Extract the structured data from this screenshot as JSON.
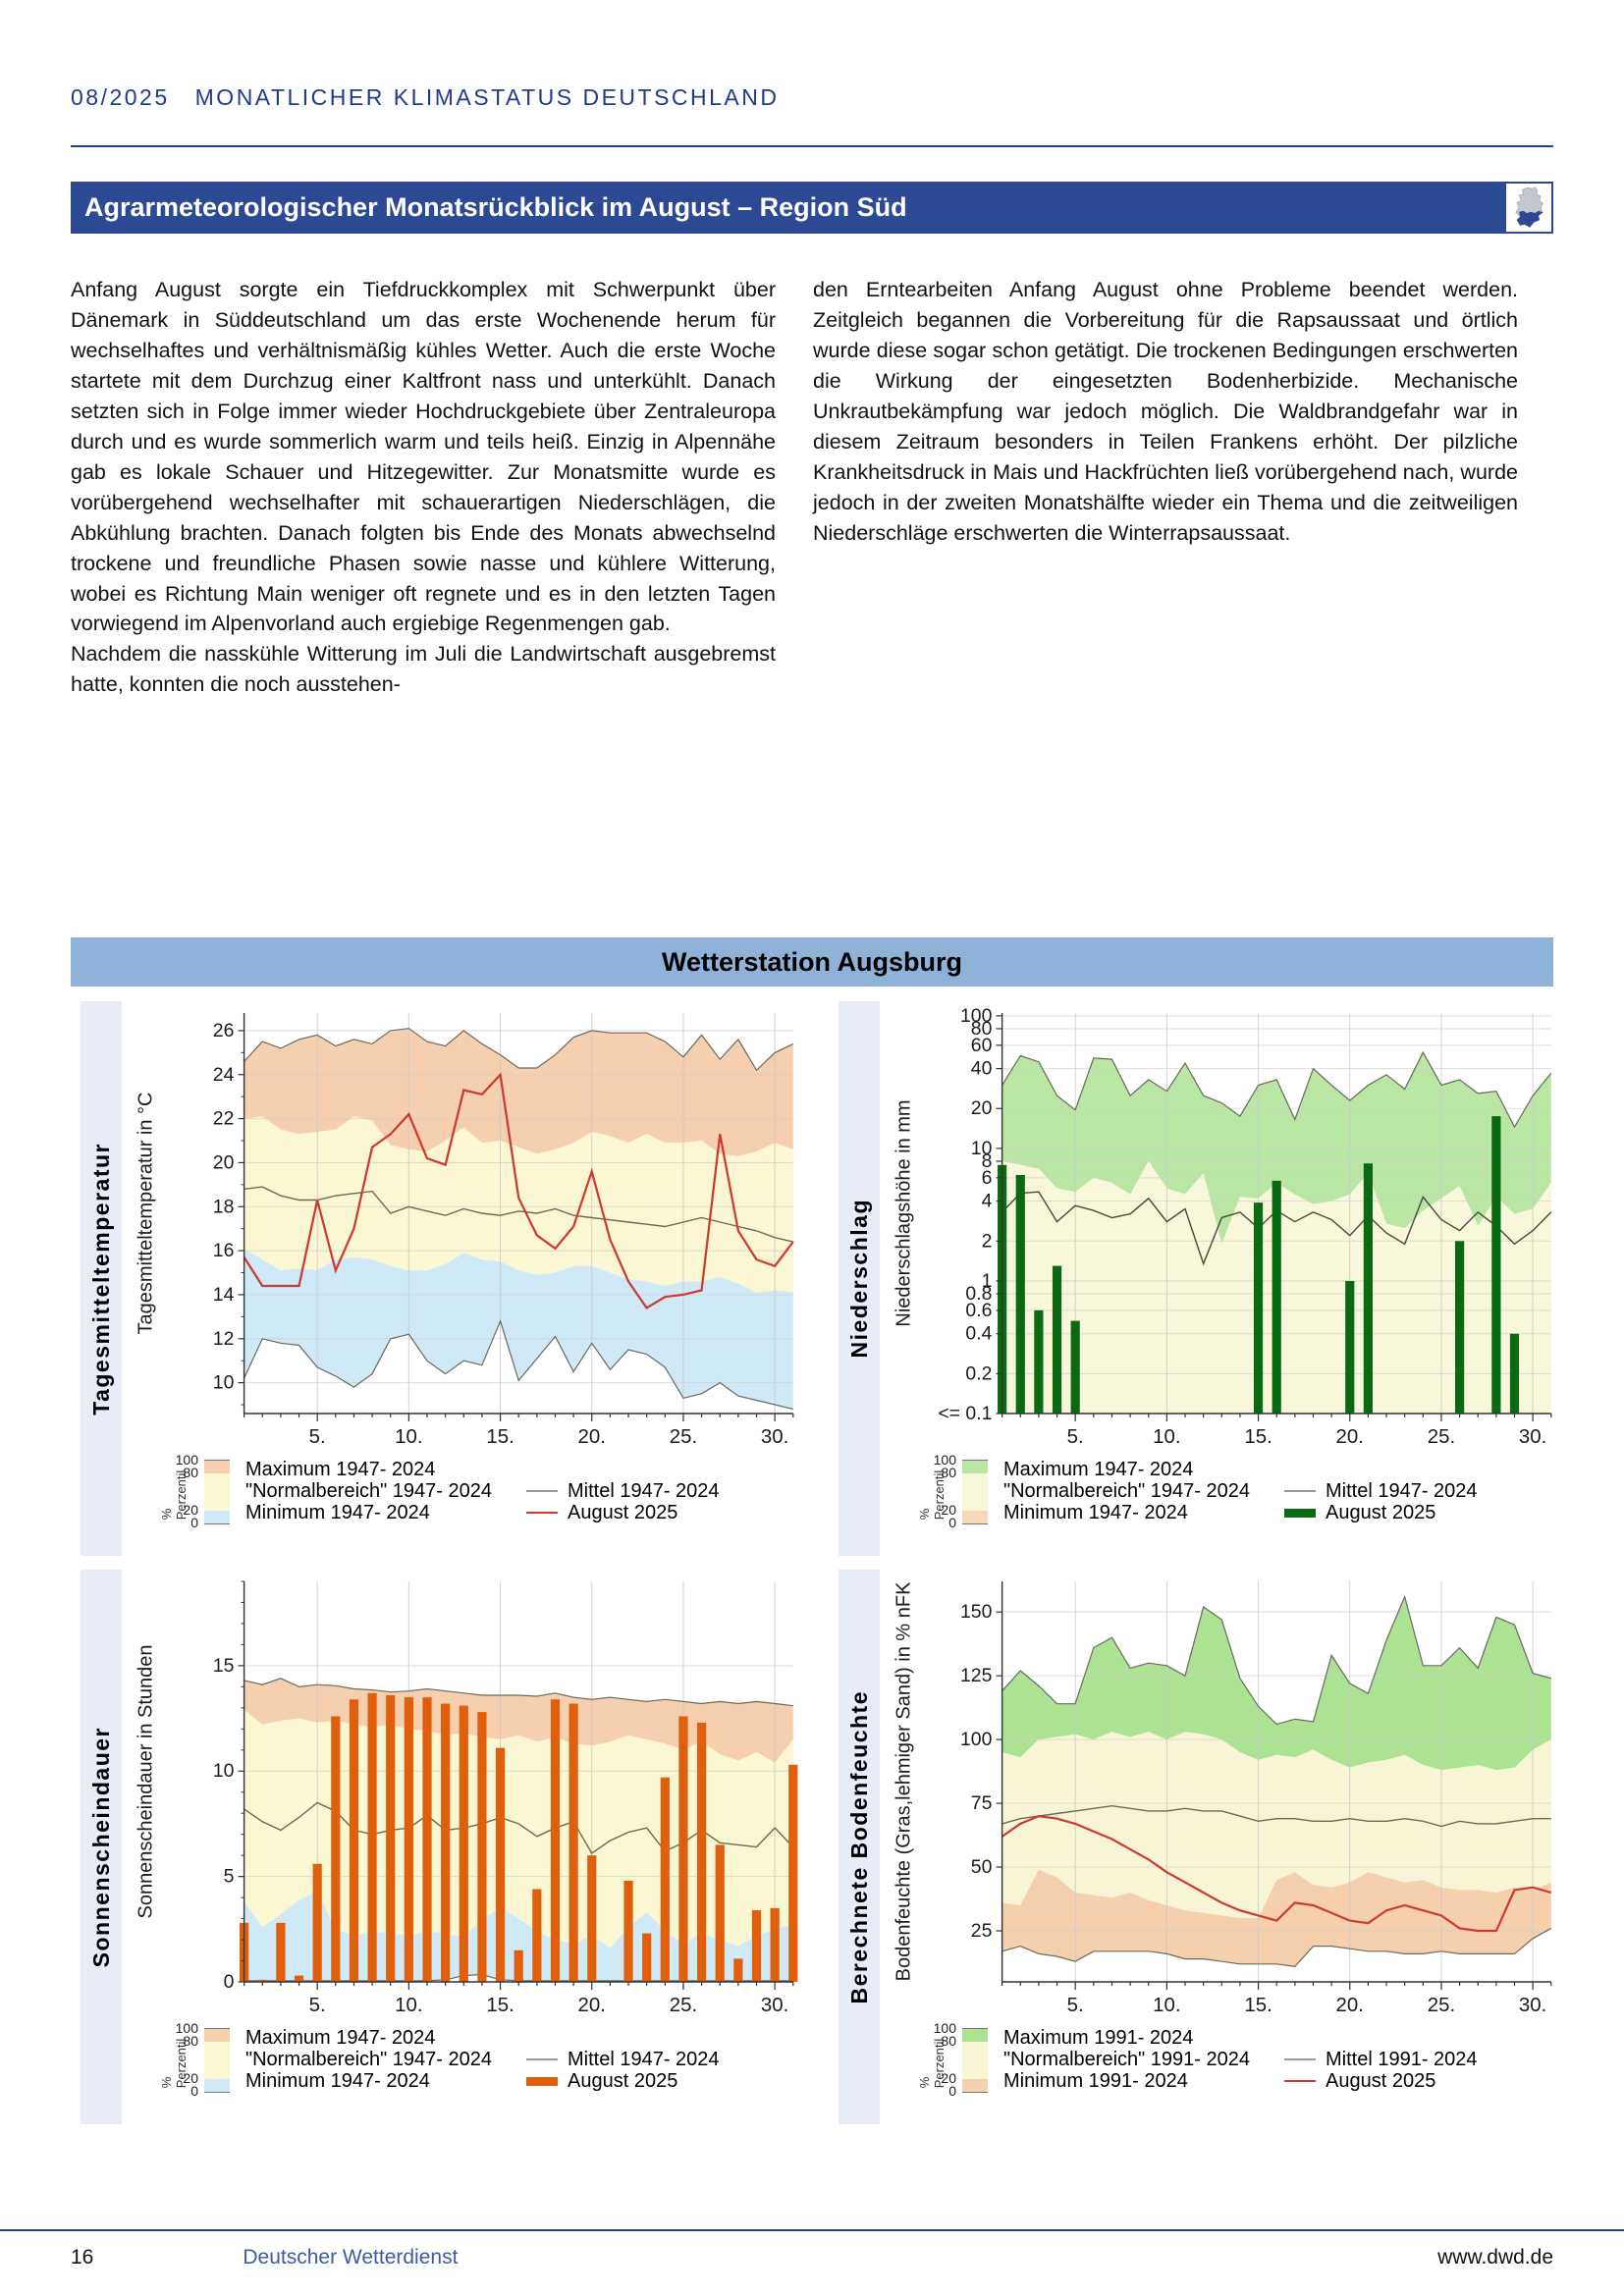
{
  "page": {
    "header": {
      "issue": "08/2025",
      "title": "MONATLICHER KLIMASTATUS DEUTSCHLAND"
    },
    "banner": {
      "title": "Agrarmeteorologischer Monatsrückblick im August – Region Süd"
    },
    "body": {
      "left_col": [
        "Anfang August sorgte ein Tiefdruckkomplex mit Schwerpunkt über Dänemark in Süddeutschland um das erste Wochenende herum für wechselhaftes und verhältnismäßig kühles Wetter. Auch die erste Woche startete mit dem Durchzug einer Kaltfront nass und unterkühlt. Danach setzten sich in Folge immer wieder Hochdruckgebiete über Zentraleuropa durch und es wurde sommerlich warm und teils heiß. Einzig in Alpennähe gab es lokale Schauer und Hitzegewitter. Zur Monatsmitte wurde es vorübergehend wechselhafter mit schauerartigen Niederschlägen, die Abkühlung brachten. Danach folgten bis Ende des Monats abwechselnd trockene und freundliche Phasen sowie nasse und kühlere Witterung, wobei es Richtung Main weniger oft regnete und es in den letzten Tagen vorwiegend im Alpenvorland auch ergiebige Regenmengen gab.",
        "Nachdem die nasskühle Witterung im Juli die Landwirtschaft ausgebremst hatte, konnten die noch ausstehen-"
      ],
      "right_col": [
        "den Erntearbeiten Anfang August ohne Probleme beendet werden. Zeitgleich begannen die Vorbereitung für die Rapsaussaat und örtlich wurde diese sogar schon getätigt. Die trockenen Bedingungen erschwerten die Wirkung der eingesetzten Bodenherbizide. Mechanische Unkrautbekämpfung war jedoch möglich. Die Waldbrandgefahr war in diesem Zeitraum besonders in Teilen Frankens erhöht. Der pilzliche Krankheitsdruck in Mais und Hackfrüchten ließ vorübergehend nach, wurde jedoch in der zweiten Monatshälfte wieder ein Thema und die zeitweiligen Niederschläge erschwerten die Winterrapsaussaat."
      ]
    },
    "station_banner": "Wetterstation Augsburg",
    "footer": {
      "page_number": "16",
      "publisher": "Deutscher Wetterdienst",
      "website": "www.dwd.de"
    }
  },
  "colors": {
    "banner_blue": "#2c4a94",
    "station_blue": "#8fb2d9",
    "header_navy": "#1e3c8c",
    "sidebar_bg": "#e8ecf6"
  },
  "chart_data": [
    {
      "id": "tagesmitteltemperatur",
      "type": "area",
      "panel_label": "Tagesmitteltemperatur",
      "ylabel": "Tagesmitteltemperatur in °C",
      "yscale": "linear",
      "ylim": [
        8.6,
        26.8
      ],
      "yticks": [
        10,
        12,
        14,
        16,
        18,
        20,
        22,
        24,
        26
      ],
      "yminor": 1,
      "xticks": [
        5,
        10,
        15,
        20,
        25,
        30
      ],
      "series": {
        "max": [
          24.6,
          25.5,
          25.2,
          25.6,
          25.8,
          25.3,
          25.6,
          25.4,
          26.0,
          26.1,
          25.5,
          25.3,
          26.0,
          25.4,
          24.9,
          24.3,
          24.3,
          24.9,
          25.7,
          26.0,
          25.9,
          25.9,
          25.9,
          25.5,
          24.8,
          25.8,
          24.7,
          25.6,
          24.2,
          25.0,
          25.4
        ],
        "p80": [
          22.0,
          22.1,
          21.5,
          21.3,
          21.4,
          21.5,
          22.1,
          21.9,
          20.8,
          20.6,
          20.5,
          21.0,
          21.6,
          20.9,
          21.0,
          20.7,
          20.4,
          20.6,
          20.9,
          21.4,
          21.2,
          20.9,
          21.3,
          20.9,
          20.9,
          21.0,
          20.4,
          20.3,
          20.5,
          20.9,
          20.6
        ],
        "p20": [
          16.1,
          15.6,
          15.1,
          15.2,
          15.1,
          15.6,
          15.7,
          15.6,
          15.3,
          15.1,
          15.1,
          15.4,
          15.9,
          15.6,
          15.5,
          15.1,
          14.9,
          15.0,
          15.3,
          15.3,
          15.0,
          14.7,
          14.6,
          14.4,
          14.6,
          14.6,
          14.8,
          14.5,
          14.1,
          14.2,
          14.1
        ],
        "min": [
          10.2,
          12.0,
          11.8,
          11.7,
          10.7,
          10.3,
          9.8,
          10.4,
          12.0,
          12.2,
          11.0,
          10.4,
          11.0,
          10.8,
          12.8,
          10.1,
          11.1,
          12.1,
          10.5,
          11.8,
          10.6,
          11.5,
          11.3,
          10.7,
          9.3,
          9.5,
          10.0,
          9.4,
          9.2,
          9.0,
          8.8
        ],
        "mittel": [
          18.8,
          18.9,
          18.5,
          18.3,
          18.3,
          18.5,
          18.6,
          18.7,
          17.7,
          18.0,
          17.8,
          17.6,
          17.9,
          17.7,
          17.6,
          17.8,
          17.7,
          17.9,
          17.6,
          17.5,
          17.4,
          17.3,
          17.2,
          17.1,
          17.3,
          17.5,
          17.3,
          17.1,
          16.9,
          16.6,
          16.4
        ],
        "august": [
          15.7,
          14.4,
          14.4,
          14.4,
          18.3,
          15.1,
          17.0,
          20.7,
          21.3,
          22.2,
          20.2,
          19.9,
          23.3,
          23.1,
          24.0,
          18.4,
          16.7,
          16.1,
          17.1,
          19.6,
          16.5,
          14.6,
          13.4,
          13.9,
          14.0,
          14.2,
          21.3,
          16.9,
          15.6,
          15.3,
          16.4
        ]
      },
      "band_colors": {
        "max": "#f6cfae",
        "normal": "#faf7d2",
        "min": "#cfe9f7"
      },
      "mittel_color": "#6b6b5a",
      "august_color": "#cc3a31",
      "legend": {
        "percentile_label": "% Perzentil",
        "percentile_ticks": [
          "100",
          "80",
          "20",
          "0"
        ],
        "items": [
          "Maximum 1947- 2024",
          "\"Normalbereich\" 1947- 2024",
          "Minimum 1947- 2024"
        ],
        "mittel_label": "Mittel 1947- 2024",
        "august_label": "August 2025",
        "august_swatch": "line"
      }
    },
    {
      "id": "niederschlag",
      "type": "bar",
      "panel_label": "Niederschlag",
      "ylabel": "Niederschlagshöhe in mm",
      "yscale": "log",
      "ylim": [
        0.1,
        105
      ],
      "yticks": [
        100,
        80,
        60,
        40,
        20,
        10,
        8,
        6,
        4,
        2,
        1,
        0.8,
        0.6,
        0.4,
        0.2,
        0.1
      ],
      "ytick_labels": [
        "100",
        "80",
        "60",
        "40",
        "20",
        "10",
        "8",
        "6",
        "4",
        "2",
        "1",
        "0.8",
        "0.6",
        "0.4",
        "0.2",
        "<= 0.1"
      ],
      "xticks": [
        5,
        10,
        15,
        20,
        25,
        30
      ],
      "series": {
        "max": [
          30,
          50,
          45,
          25,
          19.5,
          48,
          47,
          25,
          33,
          27,
          44,
          25,
          22,
          17.5,
          30,
          33,
          16.5,
          40,
          30,
          23,
          30,
          36,
          28,
          53,
          30,
          33,
          26,
          27,
          14.5,
          25,
          37
        ],
        "p80": [
          8,
          7.5,
          7,
          5,
          4.7,
          6,
          5.5,
          4.5,
          8,
          5,
          4.5,
          6.5,
          1.9,
          4.3,
          4.2,
          5.5,
          4.5,
          3.8,
          4,
          4.5,
          6.5,
          2.7,
          2.5,
          3.4,
          4.2,
          5.2,
          2.6,
          4.3,
          3.2,
          3.5,
          5.5
        ],
        "mittel": [
          3.3,
          4.6,
          4.7,
          2.8,
          3.7,
          3.4,
          3.0,
          3.2,
          4.2,
          2.8,
          3.5,
          1.35,
          3.0,
          3.3,
          2.5,
          3.4,
          2.8,
          3.3,
          2.9,
          2.2,
          3.1,
          2.3,
          1.9,
          4.3,
          2.9,
          2.4,
          3.3,
          2.6,
          1.9,
          2.4,
          3.3
        ],
        "bars": [
          7.5,
          6.3,
          0.6,
          1.3,
          0.5,
          null,
          null,
          null,
          null,
          null,
          null,
          null,
          null,
          null,
          3.9,
          5.7,
          null,
          null,
          null,
          1.0,
          7.7,
          null,
          null,
          null,
          null,
          2.0,
          null,
          17.5,
          0.4,
          null,
          null
        ]
      },
      "band_colors": {
        "max": "#b9e7a3",
        "normal": "#f8f7d9",
        "min": "#f7d8b8"
      },
      "mittel_color": "#4a4a42",
      "august_color": "#0a6a12",
      "legend": {
        "percentile_label": "% Perzentil",
        "percentile_ticks": [
          "100",
          "80",
          "20",
          "0"
        ],
        "items": [
          "Maximum 1947- 2024",
          "\"Normalbereich\" 1947- 2024",
          "Minimum 1947- 2024"
        ],
        "mittel_label": "Mittel 1947- 2024",
        "august_label": "August 2025",
        "august_swatch": "bar"
      }
    },
    {
      "id": "sonnenscheindauer",
      "type": "bar",
      "panel_label": "Sonnenscheindauer",
      "ylabel": "Sonnenscheindauer in Stunden",
      "yscale": "linear",
      "ylim": [
        0,
        19
      ],
      "yticks": [
        0,
        5,
        10,
        15
      ],
      "yminor": 1,
      "xticks": [
        5,
        10,
        15,
        20,
        25,
        30
      ],
      "series": {
        "max": [
          14.3,
          14.1,
          14.4,
          14.0,
          14.1,
          14.05,
          13.9,
          13.85,
          13.75,
          13.8,
          13.9,
          13.8,
          13.7,
          13.6,
          13.6,
          13.6,
          13.55,
          13.7,
          13.5,
          13.4,
          13.5,
          13.4,
          13.3,
          13.4,
          13.3,
          13.2,
          13.3,
          13.2,
          13.3,
          13.2,
          13.1
        ],
        "p80": [
          12.9,
          12.2,
          12.4,
          12.5,
          12.3,
          12.4,
          12.2,
          12.1,
          12.2,
          12.0,
          11.9,
          11.7,
          11.8,
          11.6,
          11.5,
          11.7,
          11.4,
          11.6,
          11.3,
          11.2,
          11.4,
          11.7,
          11.5,
          11.3,
          11.0,
          11.4,
          10.8,
          10.5,
          10.9,
          10.4,
          11.5
        ],
        "p20": [
          3.8,
          2.6,
          3.2,
          3.9,
          4.3,
          2.5,
          2.2,
          2.4,
          2.3,
          2.2,
          2.4,
          2.3,
          2.1,
          3.0,
          3.5,
          3.0,
          2.4,
          2.0,
          1.8,
          2.2,
          1.6,
          2.6,
          3.3,
          2.4,
          1.8,
          2.3,
          2.0,
          1.7,
          2.2,
          2.5,
          2.7
        ],
        "min": [
          0.05,
          0.05,
          0.05,
          0.05,
          0.05,
          0.05,
          0.05,
          0.05,
          0.05,
          0.05,
          0.05,
          0.1,
          0.3,
          0.35,
          0.1,
          0.05,
          0.05,
          0.05,
          0.05,
          0.05,
          0.05,
          0.05,
          0.05,
          0.05,
          0.05,
          0.05,
          0.05,
          0.05,
          0.05,
          0.05,
          0.05
        ],
        "mittel": [
          8.2,
          7.6,
          7.2,
          7.8,
          8.5,
          8.1,
          7.2,
          7.0,
          7.2,
          7.3,
          7.9,
          7.2,
          7.3,
          7.5,
          7.8,
          7.5,
          6.9,
          7.3,
          7.6,
          6.1,
          6.7,
          7.1,
          7.3,
          6.2,
          6.6,
          7.2,
          6.6,
          6.5,
          6.4,
          7.3,
          6.4
        ],
        "bars": [
          2.8,
          0.1,
          2.8,
          0.3,
          5.6,
          12.6,
          13.4,
          13.7,
          13.6,
          13.5,
          13.5,
          13.2,
          13.1,
          12.8,
          11.1,
          1.5,
          4.4,
          13.4,
          13.2,
          6.0,
          null,
          4.8,
          2.3,
          9.7,
          12.6,
          12.3,
          6.5,
          1.1,
          3.4,
          3.5,
          10.3
        ]
      },
      "band_colors": {
        "max": "#f6cfae",
        "normal": "#faf7d2",
        "min": "#cfe9f7"
      },
      "mittel_color": "#6b6b5a",
      "august_color": "#e05f0c",
      "legend": {
        "percentile_label": "% Perzentil",
        "percentile_ticks": [
          "100",
          "80",
          "20",
          "0"
        ],
        "items": [
          "Maximum 1947- 2024",
          "\"Normalbereich\" 1947- 2024",
          "Minimum 1947- 2024"
        ],
        "mittel_label": "Mittel 1947- 2024",
        "august_label": "August 2025",
        "august_swatch": "bar"
      }
    },
    {
      "id": "bodenfeuchte",
      "type": "area",
      "panel_label": "Berechnete Bodenfeuchte",
      "ylabel": "Bodenfeuchte (Gras,lehmiger Sand) in % nFK",
      "yscale": "linear",
      "ylim": [
        5,
        162
      ],
      "yticks": [
        25,
        50,
        75,
        100,
        125,
        150
      ],
      "yminor": 0,
      "xticks": [
        5,
        10,
        15,
        20,
        25,
        30
      ],
      "series": {
        "max": [
          119,
          127,
          121,
          114,
          114,
          136,
          140,
          128,
          130,
          129,
          125,
          152,
          147,
          124,
          113,
          106,
          108,
          107,
          133,
          122,
          118,
          139,
          156,
          129,
          129,
          136,
          128,
          148,
          145,
          126,
          124
        ],
        "p80": [
          95,
          93,
          100,
          101,
          102,
          100,
          103,
          101,
          103,
          100,
          103,
          102,
          100,
          95,
          92,
          94,
          93,
          96,
          92,
          89,
          91,
          92,
          94,
          90,
          88,
          89,
          90,
          88,
          89,
          96,
          100
        ],
        "p20": [
          36,
          35,
          49,
          46,
          40,
          39,
          38,
          40,
          37,
          35,
          33,
          32,
          31,
          30,
          30,
          45,
          48,
          43,
          42,
          44,
          48,
          46,
          44,
          45,
          42,
          41,
          41,
          40,
          42,
          41,
          44
        ],
        "min": [
          17,
          19,
          16,
          15,
          13,
          17,
          17,
          17,
          17,
          16,
          14,
          14,
          13,
          12,
          12,
          12,
          11,
          19,
          19,
          18,
          17,
          17,
          16,
          16,
          17,
          16,
          16,
          16,
          16,
          22,
          26
        ],
        "mittel": [
          67,
          69,
          70,
          71,
          72,
          73,
          74,
          73,
          72,
          72,
          73,
          72,
          72,
          70,
          68,
          69,
          69,
          68,
          68,
          69,
          68,
          68,
          69,
          68,
          66,
          68,
          67,
          67,
          68,
          69,
          69
        ],
        "august": [
          62,
          67,
          70,
          69,
          67,
          64,
          61,
          57,
          53,
          48,
          44,
          40,
          36,
          33,
          31,
          29,
          36,
          35,
          32,
          29,
          28,
          33,
          35,
          33,
          31,
          26,
          25,
          25,
          41,
          42,
          40
        ]
      },
      "band_colors": {
        "max": "#abe392",
        "normal": "#f8f5d6",
        "min": "#f6cfad"
      },
      "mittel_color": "#6b6b5a",
      "august_color": "#cc3a31",
      "legend": {
        "percentile_label": "% Perzentil",
        "percentile_ticks": [
          "100",
          "80",
          "20",
          "0"
        ],
        "items": [
          "Maximum 1991- 2024",
          "\"Normalbereich\" 1991- 2024",
          "Minimum 1991- 2024"
        ],
        "mittel_label": "Mittel 1991- 2024",
        "august_label": "August 2025",
        "august_swatch": "line"
      }
    }
  ]
}
